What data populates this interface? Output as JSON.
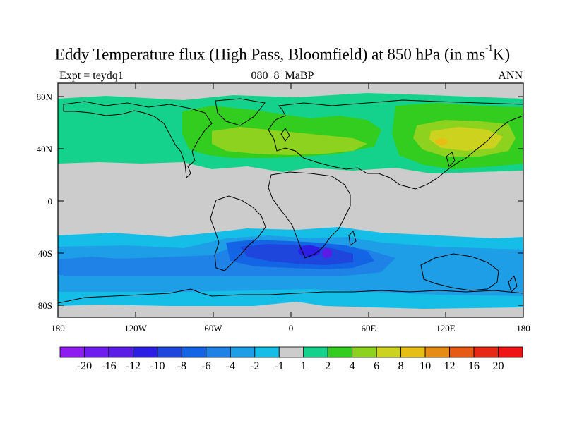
{
  "title": {
    "main": "Eddy Temperature flux (High Pass, Bloomfield) at 850 hPa (in ms",
    "sup": "-1",
    "end": "K)"
  },
  "subtitle": {
    "left": "Expt = teydq1",
    "center": "080_8_MaBP",
    "right": "ANN"
  },
  "map": {
    "lon_ticks": [
      "180",
      "120W",
      "60W",
      "0",
      "60E",
      "120E",
      "180"
    ],
    "lat_ticks": [
      "80N",
      "40N",
      "0",
      "40S",
      "80S"
    ],
    "land_color": "#000000",
    "missing_color": "#cccccc"
  },
  "colorbar": {
    "labels": [
      "-20",
      "-16",
      "-12",
      "-10",
      "-8",
      "-6",
      "-4",
      "-2",
      "-1",
      "1",
      "2",
      "4",
      "6",
      "8",
      "10",
      "12",
      "16",
      "20"
    ],
    "colors": [
      "#8c1cf0",
      "#6e1cf0",
      "#5a1ce6",
      "#2d1ee6",
      "#1e46dc",
      "#1464e6",
      "#1e82e6",
      "#1e9ee6",
      "#14bee6",
      "#cccccc",
      "#14d28c",
      "#32cd1e",
      "#8cd21e",
      "#cdd21e",
      "#e6be14",
      "#e68c14",
      "#e65a14",
      "#e62814",
      "#f01414"
    ]
  },
  "chart_data": {
    "type": "heatmap",
    "title": "Eddy Temperature flux (High Pass, Bloomfield) at 850 hPa (in ms-1K)",
    "variable": "Eddy Temperature flux (High Pass, Bloomfield)",
    "level": "850 hPa",
    "units": "ms-1K",
    "experiment": "teydq1",
    "period": "080_8_MaBP",
    "season": "ANN",
    "xlim": [
      -180,
      180
    ],
    "ylim": [
      -90,
      90
    ],
    "contour_levels": [
      -20,
      -16,
      -12,
      -10,
      -8,
      -6,
      -4,
      -2,
      -1,
      1,
      2,
      4,
      6,
      8,
      10,
      12,
      16,
      20
    ],
    "regions": [
      {
        "lon": [
          -175,
          -150
        ],
        "lat": [
          45,
          60
        ],
        "value": 2
      },
      {
        "lon": [
          -95,
          -30
        ],
        "lat": [
          30,
          70
        ],
        "value": 4
      },
      {
        "lon": [
          -20,
          40
        ],
        "lat": [
          35,
          62
        ],
        "value": 4
      },
      {
        "lon": [
          60,
          170
        ],
        "lat": [
          30,
          70
        ],
        "value": 4
      },
      {
        "lon": [
          100,
          150
        ],
        "lat": [
          40,
          58
        ],
        "value": 6
      },
      {
        "lon": [
          115,
          135
        ],
        "lat": [
          45,
          50
        ],
        "value": 8
      },
      {
        "lon": [
          -180,
          180
        ],
        "lat": [
          -70,
          -40
        ],
        "value": -2
      },
      {
        "lon": [
          -50,
          70
        ],
        "lat": [
          -60,
          -35
        ],
        "value": -4
      },
      {
        "lon": [
          0,
          55
        ],
        "lat": [
          -55,
          -40
        ],
        "value": -6
      },
      {
        "lon": [
          15,
          30
        ],
        "lat": [
          -45,
          -38
        ],
        "value": -8
      },
      {
        "lon": [
          25,
          35
        ],
        "lat": [
          -45,
          -37
        ],
        "value": -10
      }
    ]
  }
}
